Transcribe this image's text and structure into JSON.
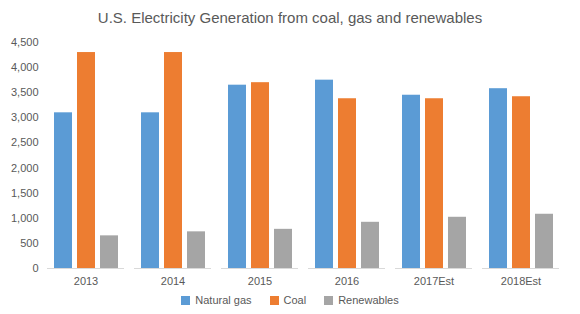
{
  "chart_data": {
    "type": "bar",
    "title": "U.S. Electricity Generation from coal, gas and renewables",
    "categories": [
      "2013",
      "2014",
      "2015",
      "2016",
      "2017Est",
      "2018Est"
    ],
    "series": [
      {
        "name": "Natural gas",
        "color": "#5b9bd5",
        "values": [
          3100,
          3100,
          3650,
          3750,
          3450,
          3580
        ]
      },
      {
        "name": "Coal",
        "color": "#ed7d31",
        "values": [
          4300,
          4300,
          3700,
          3380,
          3380,
          3420
        ]
      },
      {
        "name": "Renewables",
        "color": "#a5a5a5",
        "values": [
          650,
          730,
          780,
          920,
          1020,
          1080
        ]
      }
    ],
    "ylim": [
      0,
      4500
    ],
    "yticks": [
      0,
      500,
      1000,
      1500,
      2000,
      2500,
      3000,
      3500,
      4000,
      4500
    ],
    "grid": false,
    "legend": "bottom"
  }
}
